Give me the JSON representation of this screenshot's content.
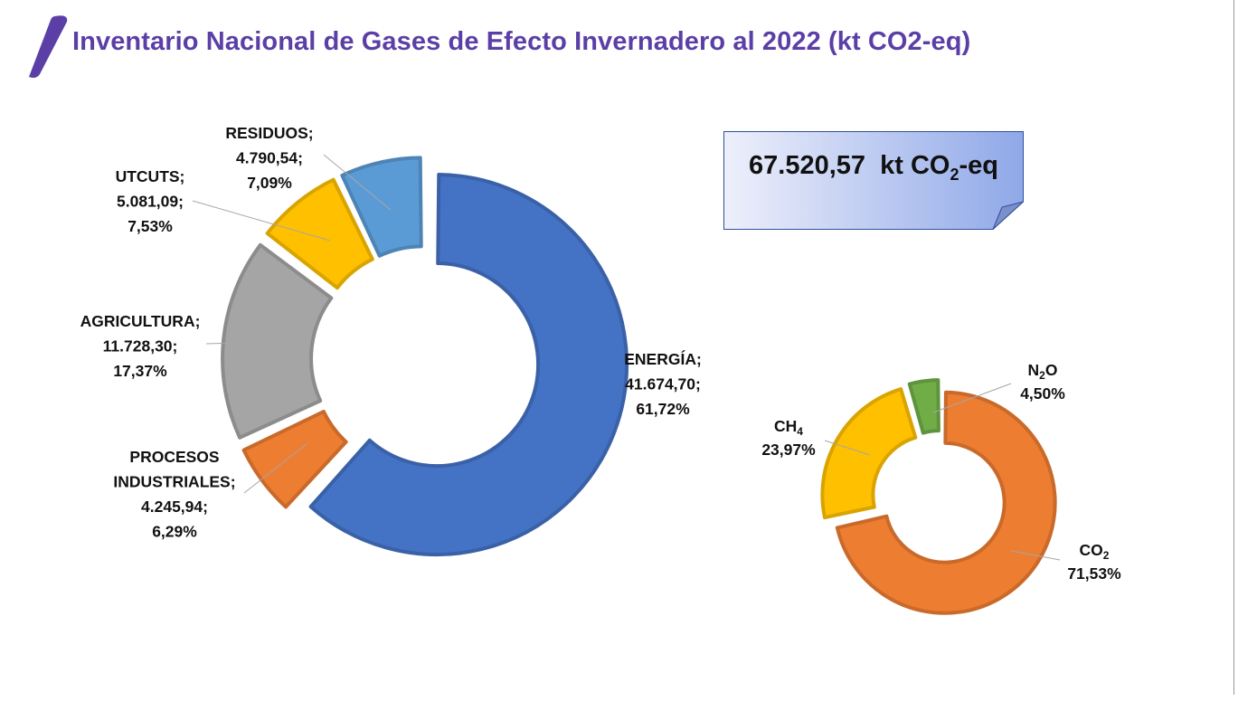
{
  "title": "Inventario Nacional de Gases de Efecto Invernadero al 2022 (kt CO2-eq)",
  "total": {
    "value": "67.520,57",
    "unit_prefix": "kt CO",
    "unit_sub": "2",
    "unit_suffix": "-eq"
  },
  "colors": {
    "title": "#5b3fa6",
    "energia": "#4472c4",
    "procesos": "#ed7d31",
    "agricultura": "#a5a5a5",
    "utcuts": "#ffc000",
    "residuos": "#5b9bd5",
    "co2": "#ed7d31",
    "ch4": "#ffc000",
    "n2o": "#70ad47"
  },
  "chart_data": [
    {
      "type": "pie",
      "variant": "donut",
      "categories": [
        "ENERGÍA",
        "PROCESOS INDUSTRIALES",
        "AGRICULTURA",
        "UTCUTS",
        "RESIDUOS"
      ],
      "values": [
        41674.7,
        4245.94,
        11728.3,
        5081.09,
        4790.54
      ],
      "percents": [
        61.72,
        6.29,
        17.37,
        7.53,
        7.09
      ],
      "labels": [
        {
          "lines": [
            "ENERGÍA;",
            "41.674,70;",
            "61,72%"
          ]
        },
        {
          "lines": [
            "PROCESOS",
            "INDUSTRIALES;",
            "4.245,94;",
            "6,29%"
          ]
        },
        {
          "lines": [
            "AGRICULTURA;",
            "11.728,30;",
            "17,37%"
          ]
        },
        {
          "lines": [
            "UTCUTS;",
            "5.081,09;",
            "7,53%"
          ]
        },
        {
          "lines": [
            "RESIDUOS;",
            "4.790,54;",
            "7,09%"
          ]
        }
      ]
    },
    {
      "type": "pie",
      "variant": "donut",
      "categories": [
        "CO2",
        "CH4",
        "N2O"
      ],
      "values": [
        71.53,
        23.97,
        4.5
      ],
      "labels": [
        {
          "main": "CO",
          "sub": "2",
          "after": "",
          "pct": "71,53%"
        },
        {
          "main": "CH",
          "sub": "4",
          "after": "",
          "pct": "23,97%"
        },
        {
          "main": "N",
          "sub": "2",
          "after": "O",
          "pct": "4,50%"
        }
      ]
    }
  ]
}
